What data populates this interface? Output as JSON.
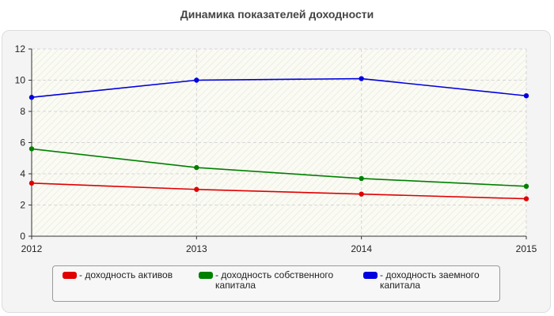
{
  "chart_data": {
    "type": "line",
    "title": "Динамика показателей доходности",
    "categories": [
      "2012",
      "2013",
      "2014",
      "2015"
    ],
    "series": [
      {
        "name": "- доходность активов",
        "values": [
          3.4,
          3.0,
          2.7,
          2.4
        ],
        "color": "#e00000"
      },
      {
        "name": "- доходность собственного капитала",
        "values": [
          5.6,
          4.4,
          3.7,
          3.2
        ],
        "color": "#008000"
      },
      {
        "name": "- доходность заемного капитала",
        "values": [
          8.9,
          10.0,
          10.1,
          9.0
        ],
        "color": "#0000e0"
      }
    ],
    "ylim": [
      0,
      12
    ],
    "yticks": [
      "0",
      "2",
      "4",
      "6",
      "8",
      "10",
      "12"
    ],
    "grid": true,
    "legend_position": "bottom"
  }
}
